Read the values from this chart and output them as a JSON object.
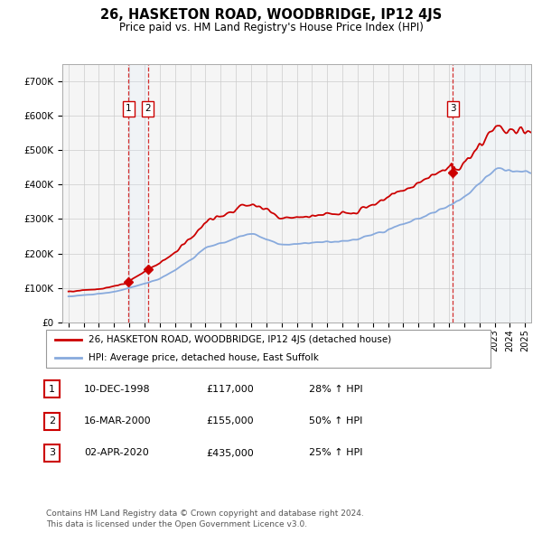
{
  "title": "26, HASKETON ROAD, WOODBRIDGE, IP12 4JS",
  "subtitle": "Price paid vs. HM Land Registry's House Price Index (HPI)",
  "legend_label_red": "26, HASKETON ROAD, WOODBRIDGE, IP12 4JS (detached house)",
  "legend_label_blue": "HPI: Average price, detached house, East Suffolk",
  "footer_line1": "Contains HM Land Registry data © Crown copyright and database right 2024.",
  "footer_line2": "This data is licensed under the Open Government Licence v3.0.",
  "sales": [
    {
      "num": 1,
      "date": "10-DEC-1998",
      "price": 117000,
      "pct": "28% ↑ HPI",
      "year": 1998.95
    },
    {
      "num": 2,
      "date": "16-MAR-2000",
      "price": 155000,
      "pct": "50% ↑ HPI",
      "year": 2000.21
    },
    {
      "num": 3,
      "date": "02-APR-2020",
      "price": 435000,
      "pct": "25% ↑ HPI",
      "year": 2020.25
    }
  ],
  "ylim": [
    0,
    750000
  ],
  "yticks": [
    0,
    100000,
    200000,
    300000,
    400000,
    500000,
    600000,
    700000
  ],
  "ytick_labels": [
    "£0",
    "£100K",
    "£200K",
    "£300K",
    "£400K",
    "£500K",
    "£600K",
    "£700K"
  ],
  "xlim_start": 1994.6,
  "xlim_end": 2025.4,
  "color_red": "#cc0000",
  "color_blue": "#88aadd",
  "color_shading": "#ddeeff",
  "grid_color": "#cccccc",
  "background_color": "#f5f5f5"
}
